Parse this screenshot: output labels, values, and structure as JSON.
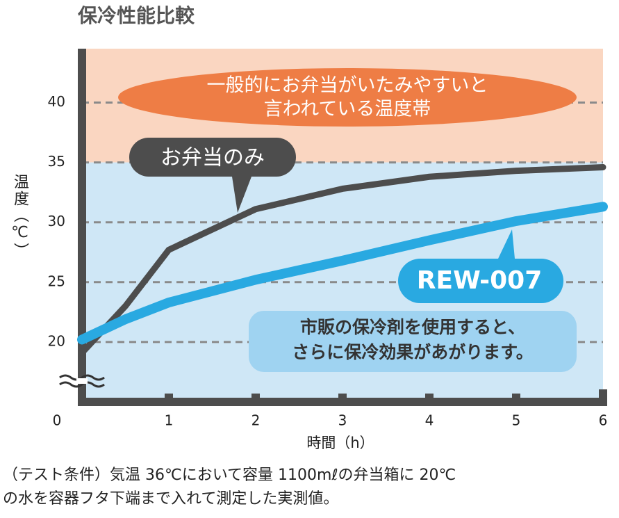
{
  "chart_data": {
    "type": "line",
    "title": "保冷性能比較",
    "x_label": "時間（h）",
    "y_label": "温度（℃）",
    "x": [
      0,
      0.5,
      1,
      2,
      3,
      4,
      5,
      6
    ],
    "series": [
      {
        "name": "お弁当のみ",
        "color": "#4d4d4d",
        "values": [
          19.1,
          23.0,
          27.7,
          31.1,
          32.8,
          33.8,
          34.3,
          34.6
        ]
      },
      {
        "name": "REW-007",
        "color": "#29a9e1",
        "values": [
          20.2,
          21.9,
          23.3,
          25.2,
          26.8,
          28.5,
          30.1,
          31.3
        ]
      }
    ],
    "xlim": [
      0,
      6
    ],
    "xticks": [
      0,
      1,
      2,
      3,
      4,
      5,
      6
    ],
    "ylim": [
      15,
      44.5
    ],
    "yticks": [
      20,
      25,
      30,
      35,
      40
    ],
    "grid": true,
    "danger_band_from": 35,
    "annotations": {
      "danger": [
        "一般的にお弁当がいたみやすいと",
        "言われている温度帯"
      ],
      "note": [
        "市販の保冷剤を使用すると、",
        "さらに保冷効果があがります。"
      ]
    },
    "footnote": [
      "（テスト条件）気温 36℃において容量 1100mℓの弁当箱に 20℃",
      "の水を容器フタ下端まで入れて測定した実測値。"
    ]
  }
}
